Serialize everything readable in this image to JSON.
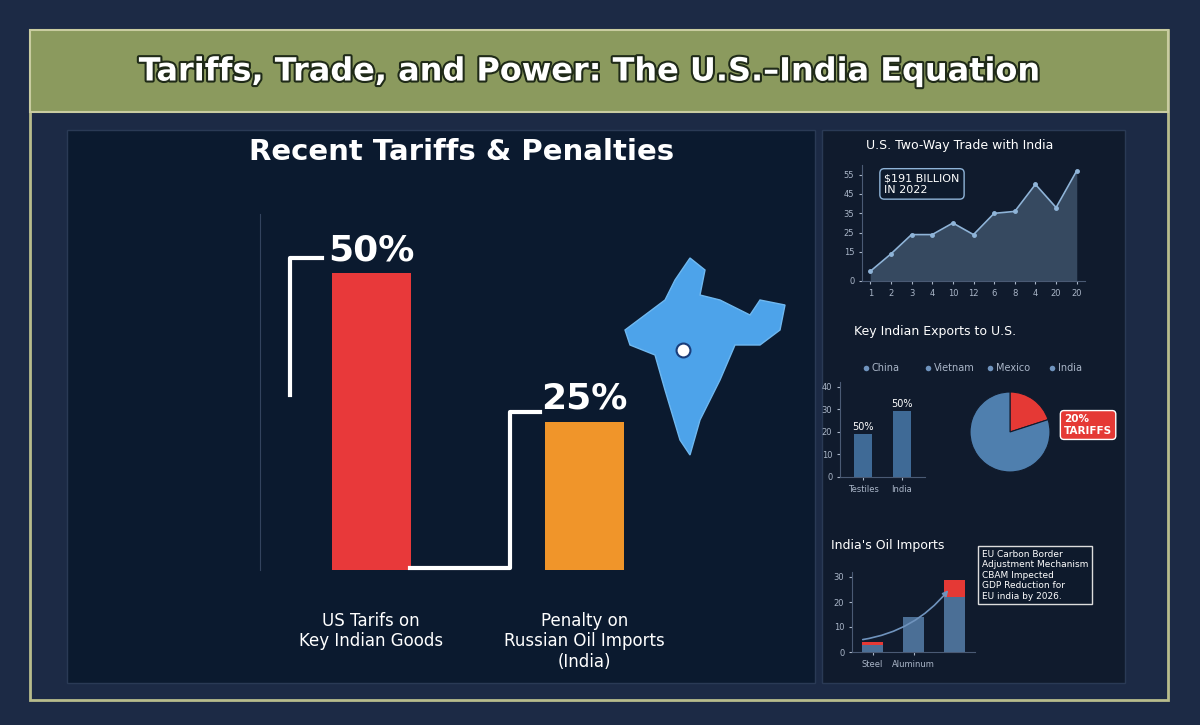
{
  "title": "Tariffs, Trade, and Power: The U.S.–India Equation",
  "chart_data": [
    {
      "type": "bar",
      "title": "Recent Tariffs & Penalties",
      "categories": [
        "US Tarifs on\nKey Indian Goods",
        "Penalty on\nRussian Oil Imports\n(India)"
      ],
      "values": [
        50,
        25
      ],
      "value_labels": [
        "50%",
        "25%"
      ],
      "colors": [
        "#e8393a",
        "#f0952a"
      ],
      "ylim": [
        0,
        60
      ],
      "data_labels": true,
      "tick_labels": "x"
    },
    {
      "type": "line",
      "title": "U.S. Two-Way Trade with India",
      "categories": [
        "1",
        "2",
        "3",
        "4",
        "10",
        "12",
        "6",
        "8",
        "4",
        "20",
        "20"
      ],
      "values": [
        5,
        14,
        24,
        24,
        30,
        24,
        35,
        36,
        50,
        38,
        57
      ],
      "color": "#8fb4d8",
      "ylim": [
        0,
        60
      ],
      "yticks": [
        0,
        15,
        25,
        35,
        45,
        55
      ],
      "annotations": [
        "$191 BILLION\nIN 2022"
      ]
    },
    {
      "type": "bar",
      "title": "Key Indian Exports to U.S.",
      "categories": [
        "Testiles",
        "India"
      ],
      "values": [
        19,
        29
      ],
      "color": "#3f6a96",
      "ylim": [
        0,
        42
      ],
      "yticks": [
        0,
        10,
        20,
        30,
        40
      ],
      "annotations": [
        "50%",
        "50%"
      ],
      "legend_labels": [
        "China",
        "Vietnam",
        "Mexico",
        "India"
      ]
    },
    {
      "type": "pie",
      "values": [
        20,
        80
      ],
      "colors": [
        "#e53935",
        "#4f7fae"
      ],
      "annotations": [
        "20%\nTARIFFS"
      ]
    },
    {
      "type": "bar",
      "title": "India's Oil Imports",
      "stacked": true,
      "categories": [
        "Steel",
        "Aluminum",
        null
      ],
      "series": [
        {
          "values": [
            3,
            14,
            22
          ],
          "color": "#4b6f96"
        },
        {
          "values": [
            1,
            0,
            7
          ],
          "color": "#e53935"
        }
      ],
      "ylim": [
        0,
        32
      ],
      "yticks": [
        0,
        10,
        20,
        30
      ],
      "annotations": [
        "EU Carbon Border\nAdjustment Mechanism\nCBAM Impected\nGDP Reduction for\nEU india by 2026."
      ]
    }
  ]
}
